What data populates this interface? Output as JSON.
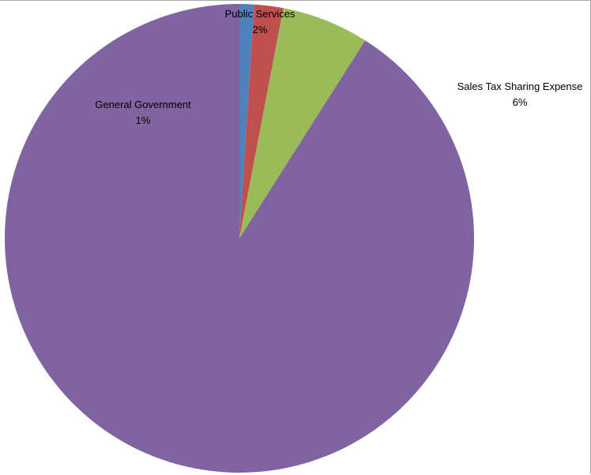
{
  "chart_data": {
    "type": "pie",
    "title": "",
    "start_angle_deg": 0,
    "direction": "clockwise",
    "slices": [
      {
        "label": "General Government",
        "percent_label": "1%",
        "value": 1,
        "color": "#4f81bd"
      },
      {
        "label": "Public Services",
        "percent_label": "2%",
        "value": 2,
        "color": "#c0504d"
      },
      {
        "label": "Sales Tax Sharing Expense",
        "percent_label": "6%",
        "value": 6,
        "color": "#9bbb59"
      },
      {
        "label": "",
        "percent_label": "",
        "value": 91,
        "color": "#8064a2"
      }
    ],
    "legend": "none"
  }
}
